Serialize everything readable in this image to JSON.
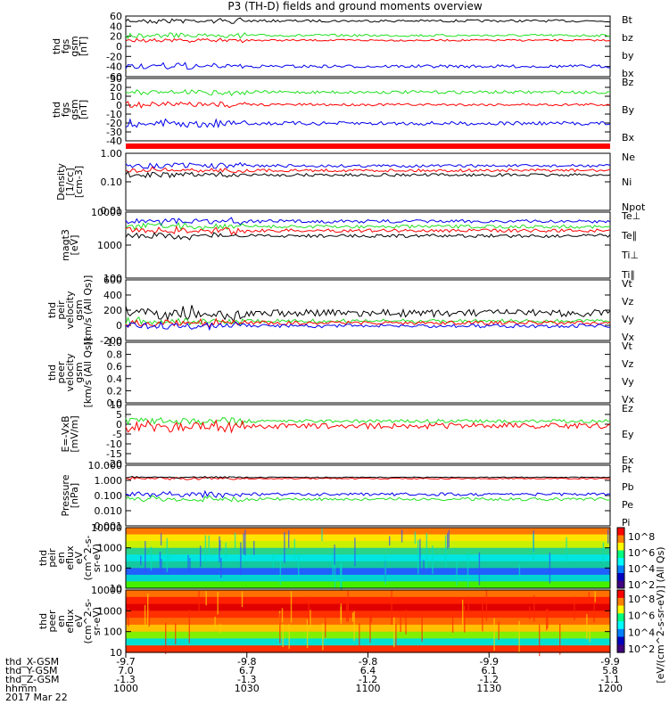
{
  "title": "P3 (TH-D) fields and ground moments overview",
  "colors": {
    "black": "#000000",
    "red": "#ff0000",
    "green": "#22e022",
    "blue": "#0000ee"
  },
  "chart_data": {
    "type": "line",
    "x_axis": {
      "ticks": [
        "1000",
        "1030",
        "1100",
        "1130",
        "1200"
      ],
      "ephemeris": [
        {
          "label": "thd_X-GSM",
          "values": [
            "-9.7",
            "-9.8",
            "-9.8",
            "-9.9",
            "-9.9"
          ]
        },
        {
          "label": "thd_Y-GSM",
          "values": [
            "7.0",
            "6.7",
            "6.4",
            "6.1",
            "5.8"
          ]
        },
        {
          "label": "thd_Z-GSM",
          "values": [
            "-1.3",
            "-1.3",
            "-1.2",
            "-1.2",
            "-1.1"
          ]
        },
        {
          "label": "hhmm",
          "values": [
            "1000",
            "1030",
            "1100",
            "1130",
            "1200"
          ]
        }
      ],
      "date": "2017 Mar 22"
    },
    "panels": [
      {
        "key": "fgs_gsm",
        "ylabel": [
          "thd",
          "fgs",
          "gsm",
          "[nT]"
        ],
        "scale": "linear",
        "ticks": [
          "60",
          "40",
          "20",
          "0",
          "-20",
          "-40",
          "-60"
        ],
        "legend": [
          {
            "name": "Bt",
            "color": "black"
          },
          {
            "name": "bz",
            "color": "red"
          },
          {
            "name": "by",
            "color": "green"
          },
          {
            "name": "bx",
            "color": "blue"
          }
        ]
      },
      {
        "key": "fgs_dsl",
        "ylabel": [
          "thd",
          "fgs",
          "gsm",
          "[nT]"
        ],
        "scale": "linear",
        "ticks": [
          "30",
          "20",
          "10",
          "0",
          "-10",
          "-20",
          "-30",
          "-40"
        ],
        "legend": [
          {
            "name": "Bz",
            "color": "red"
          },
          {
            "name": "By",
            "color": "green"
          },
          {
            "name": "Bx",
            "color": "blue"
          }
        ]
      },
      {
        "key": "density",
        "ylabel": [
          "Density",
          "[1/cc]",
          "[cm-3]"
        ],
        "scale": "log",
        "ticks": [
          "1.00",
          "0.10",
          "0.01"
        ],
        "legend": [
          {
            "name": "Ne",
            "color": "red"
          },
          {
            "name": "Ni",
            "color": "black"
          },
          {
            "name": "Npot",
            "color": "blue"
          }
        ]
      },
      {
        "key": "temperature",
        "ylabel": [
          "magt3",
          "[eV]"
        ],
        "scale": "log",
        "ticks": [
          "10000",
          "1000",
          "100"
        ],
        "legend": [
          {
            "name": "Te⊥",
            "color": "red"
          },
          {
            "name": "Te∥",
            "color": "black"
          },
          {
            "name": "Ti⊥",
            "color": "green"
          },
          {
            "name": "Ti∥",
            "color": "green"
          }
        ]
      },
      {
        "key": "peir_velocity",
        "ylabel": [
          "thd",
          "peir",
          "velocity",
          "gsm",
          "[km/s (All Qs)]"
        ],
        "scale": "linear",
        "ticks": [
          "600",
          "400",
          "200",
          "0",
          "-200"
        ],
        "legend": [
          {
            "name": "Vt",
            "color": "black"
          },
          {
            "name": "Vz",
            "color": "red"
          },
          {
            "name": "Vy",
            "color": "green"
          },
          {
            "name": "Vx",
            "color": "blue"
          }
        ]
      },
      {
        "key": "peer_velocity",
        "ylabel": [
          "thd",
          "peer",
          "velocity",
          "gsm",
          "[km/s (All Qs)]"
        ],
        "scale": "linear",
        "ticks": [
          "1.0",
          "0.8",
          "0.6",
          "0.4",
          "0.2",
          "0.0"
        ],
        "legend": [
          {
            "name": "Vt",
            "color": "black"
          },
          {
            "name": "Vz",
            "color": "red"
          },
          {
            "name": "Vy",
            "color": "green"
          },
          {
            "name": "Vx",
            "color": "blue"
          }
        ]
      },
      {
        "key": "efield",
        "ylabel": [
          "E=-VxB",
          "[mV/m]"
        ],
        "scale": "linear",
        "ticks": [
          "10",
          "5",
          "0",
          "-5",
          "-10",
          "-15",
          "-20"
        ],
        "legend": [
          {
            "name": "Ez",
            "color": "red"
          },
          {
            "name": "Ey",
            "color": "green"
          },
          {
            "name": "Ex",
            "color": "blue"
          }
        ]
      },
      {
        "key": "pressure",
        "ylabel": [
          "Pressure",
          "[nPa]"
        ],
        "scale": "log",
        "ticks": [
          "10.000",
          "1.000",
          "0.100",
          "0.010",
          "0.001"
        ],
        "legend": [
          {
            "name": "Pt",
            "color": "black"
          },
          {
            "name": "Pb",
            "color": "red"
          },
          {
            "name": "Pe",
            "color": "green"
          },
          {
            "name": "Pi",
            "color": "blue"
          }
        ]
      },
      {
        "key": "peir_spec",
        "ylabel": [
          "thd",
          "peir",
          "en",
          "eflux",
          "eV",
          "(cm^2-s-",
          "sr-eV)"
        ],
        "scale": "log",
        "ticks": [
          "10000",
          "1000",
          "100",
          "10"
        ],
        "type": "spectrogram"
      },
      {
        "key": "peer_spec",
        "ylabel": [
          "thd",
          "peer",
          "en",
          "eflux",
          "eV",
          "(cm^2-s-",
          "sr-eV)"
        ],
        "scale": "log",
        "ticks": [
          "10000",
          "1000",
          "100",
          "10"
        ],
        "type": "spectrogram"
      }
    ],
    "colorbar": {
      "label": "[eV/(cm^2-s-sr-eV)] (All Qs)",
      "ticks_upper": [
        "10^8",
        "10^6",
        "10^4",
        "10^2"
      ],
      "ticks_lower": [
        "10^8",
        "10^6",
        "10^4",
        "10^2"
      ]
    }
  }
}
